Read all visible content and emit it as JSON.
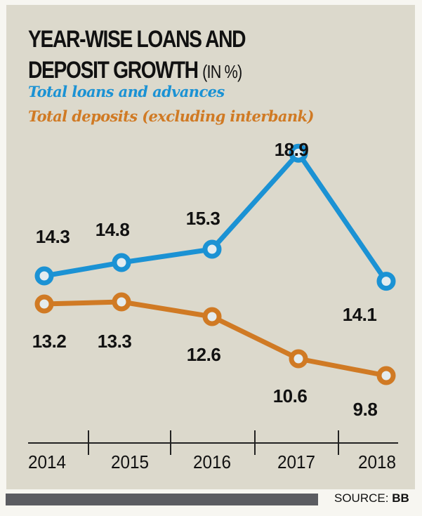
{
  "header": {
    "title_line1": "YEAR-WISE LOANS AND",
    "title_line2": "DEPOSIT GROWTH",
    "title_unit": "(IN %)"
  },
  "legend": {
    "loans": "Total loans and advances",
    "deposits": "Total deposits (excluding interbank)"
  },
  "source": {
    "label": "SOURCE:",
    "value": "BB"
  },
  "colors": {
    "loans": "#1b92d4",
    "deposits": "#d07a24",
    "background": "#dcd9cc"
  },
  "chart_data": {
    "type": "line",
    "title": "YEAR-WISE LOANS AND DEPOSIT GROWTH (IN %)",
    "xlabel": "",
    "ylabel": "",
    "categories": [
      "2014",
      "2015",
      "2016",
      "2017",
      "2018"
    ],
    "ylim": [
      9,
      19
    ],
    "grid": false,
    "legend_position": "top-left",
    "series": [
      {
        "name": "Total loans and advances",
        "color": "#1b92d4",
        "values": [
          14.3,
          14.8,
          15.3,
          18.9,
          14.1
        ],
        "labels": [
          "14.3",
          "14.8",
          "15.3",
          "18.9",
          "14.1"
        ]
      },
      {
        "name": "Total deposits (excluding interbank)",
        "color": "#d07a24",
        "values": [
          13.2,
          13.3,
          12.6,
          10.6,
          9.8
        ],
        "labels": [
          "13.2",
          "13.3",
          "12.6",
          "10.6",
          "9.8"
        ]
      }
    ]
  }
}
